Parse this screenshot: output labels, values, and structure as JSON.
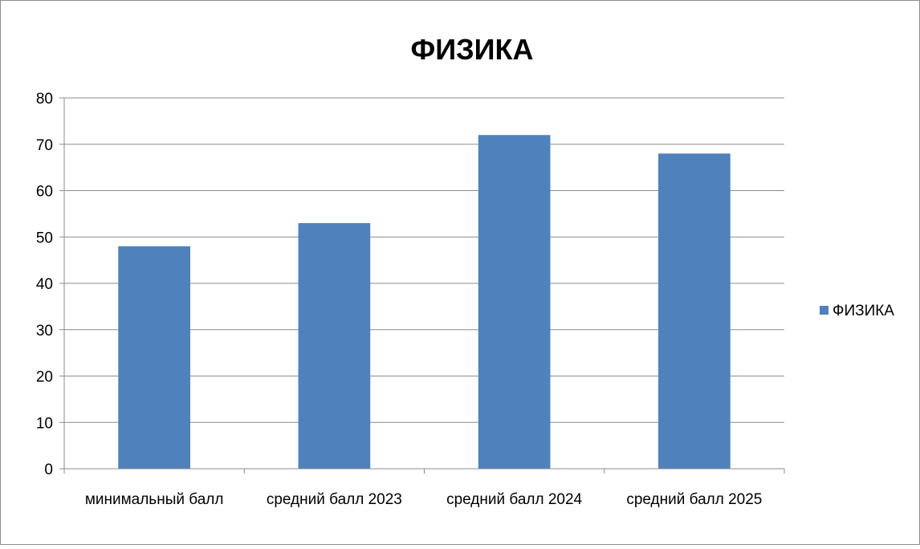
{
  "chart_data": {
    "type": "bar",
    "title": "ФИЗИКА",
    "categories": [
      "минимальный балл",
      "средний балл 2023",
      "средний балл 2024",
      "средний балл 2025"
    ],
    "series": [
      {
        "name": "ФИЗИКА",
        "values": [
          48,
          53,
          72,
          68
        ],
        "color": "#4f81bd"
      }
    ],
    "xlabel": "",
    "ylabel": "",
    "ylim": [
      0,
      80
    ],
    "yticks": [
      0,
      10,
      20,
      30,
      40,
      50,
      60,
      70,
      80
    ],
    "grid": true,
    "legend": "right"
  }
}
